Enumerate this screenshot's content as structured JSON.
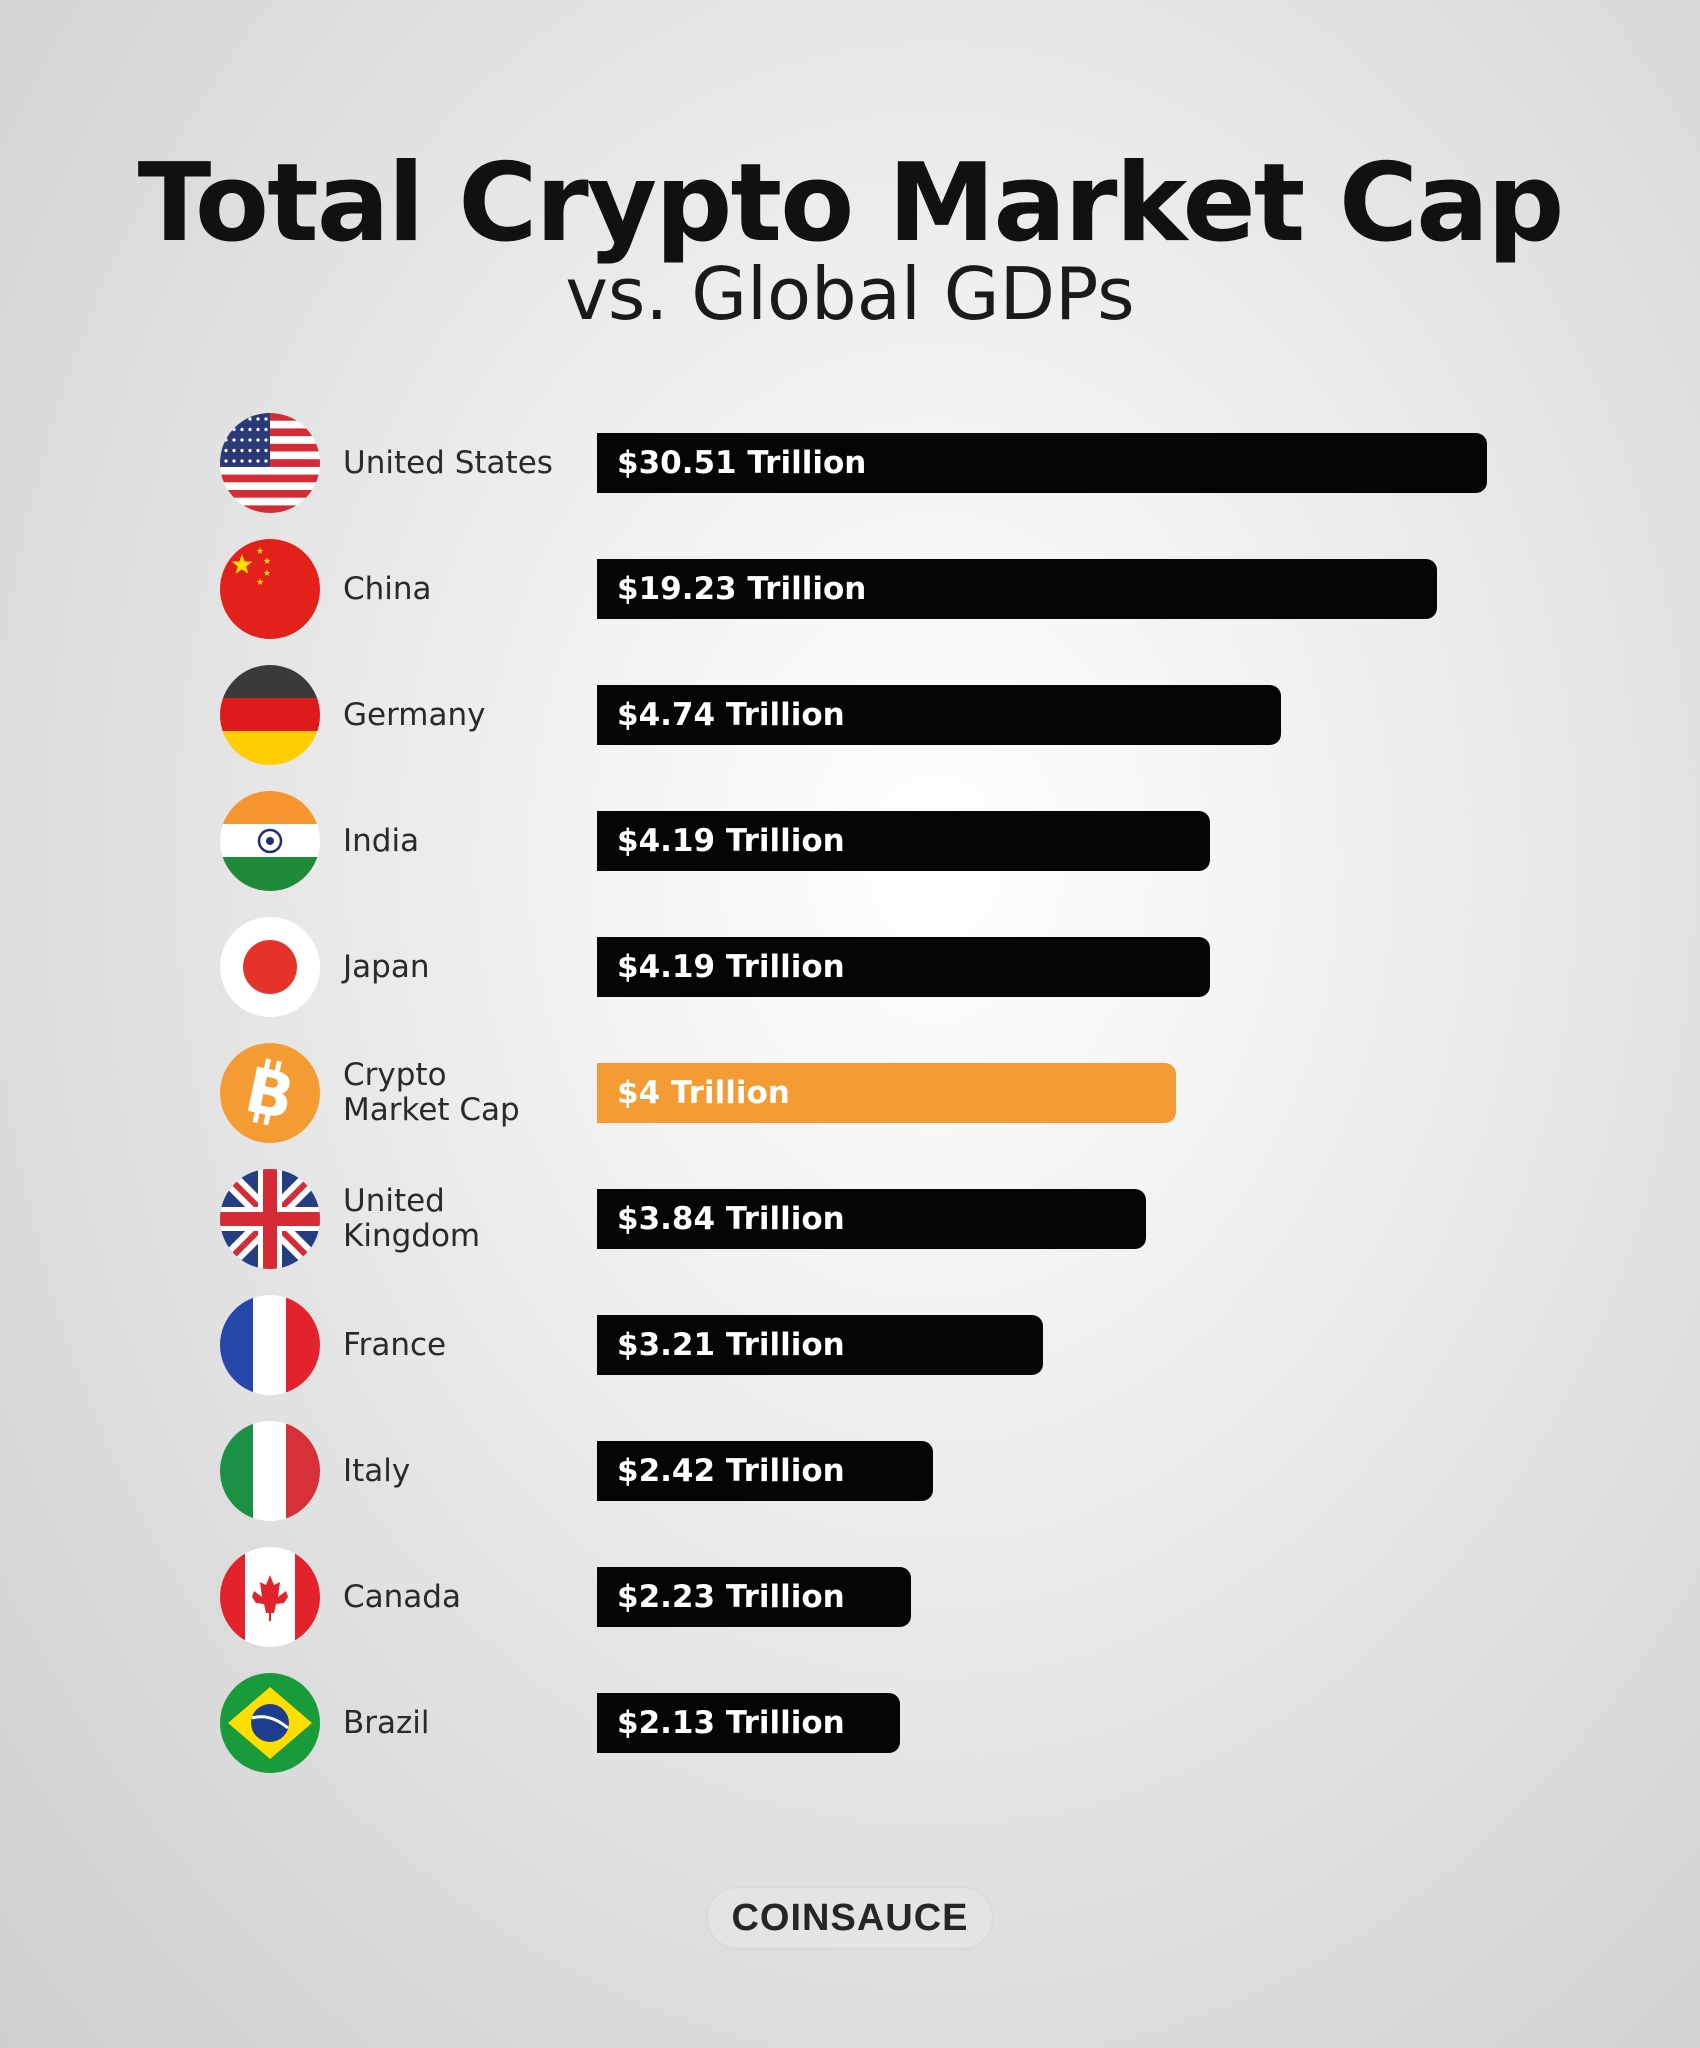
{
  "chart_data": {
    "type": "bar",
    "orientation": "horizontal",
    "title": "Total Crypto Market Cap",
    "subtitle": "vs. Global GDPs",
    "unit": "Trillion USD",
    "categories": [
      "United States",
      "China",
      "Germany",
      "India",
      "Japan",
      "Crypto\nMarket Cap",
      "United Kingdom",
      "France",
      "Italy",
      "Canada",
      "Brazil"
    ],
    "values": [
      30.51,
      19.23,
      4.74,
      4.19,
      4.19,
      4,
      3.84,
      3.21,
      2.42,
      2.23,
      2.13
    ],
    "data_labels": [
      "$30.51 Trillion",
      "$19.23 Trillion",
      "$4.74 Trillion",
      "$4.19 Trillion",
      "$4.19 Trillion",
      "$4 Trillion",
      "$3.84 Trillion",
      "$3.21 Trillion",
      "$2.42 Trillion",
      "$2.23 Trillion",
      "$2.13 Trillion"
    ],
    "icons": [
      "us-flag-icon",
      "china-flag-icon",
      "germany-flag-icon",
      "india-flag-icon",
      "japan-flag-icon",
      "bitcoin-icon",
      "uk-flag-icon",
      "france-flag-icon",
      "italy-flag-icon",
      "canada-flag-icon",
      "brazil-flag-icon"
    ],
    "highlight_index": 5,
    "colors": {
      "bar": "#050505",
      "highlight": "#f49c33",
      "bar_text": "#ffffff"
    },
    "axis": "none",
    "grid": false,
    "legend": "none"
  },
  "footer": {
    "brand": "COINSAUCE"
  }
}
